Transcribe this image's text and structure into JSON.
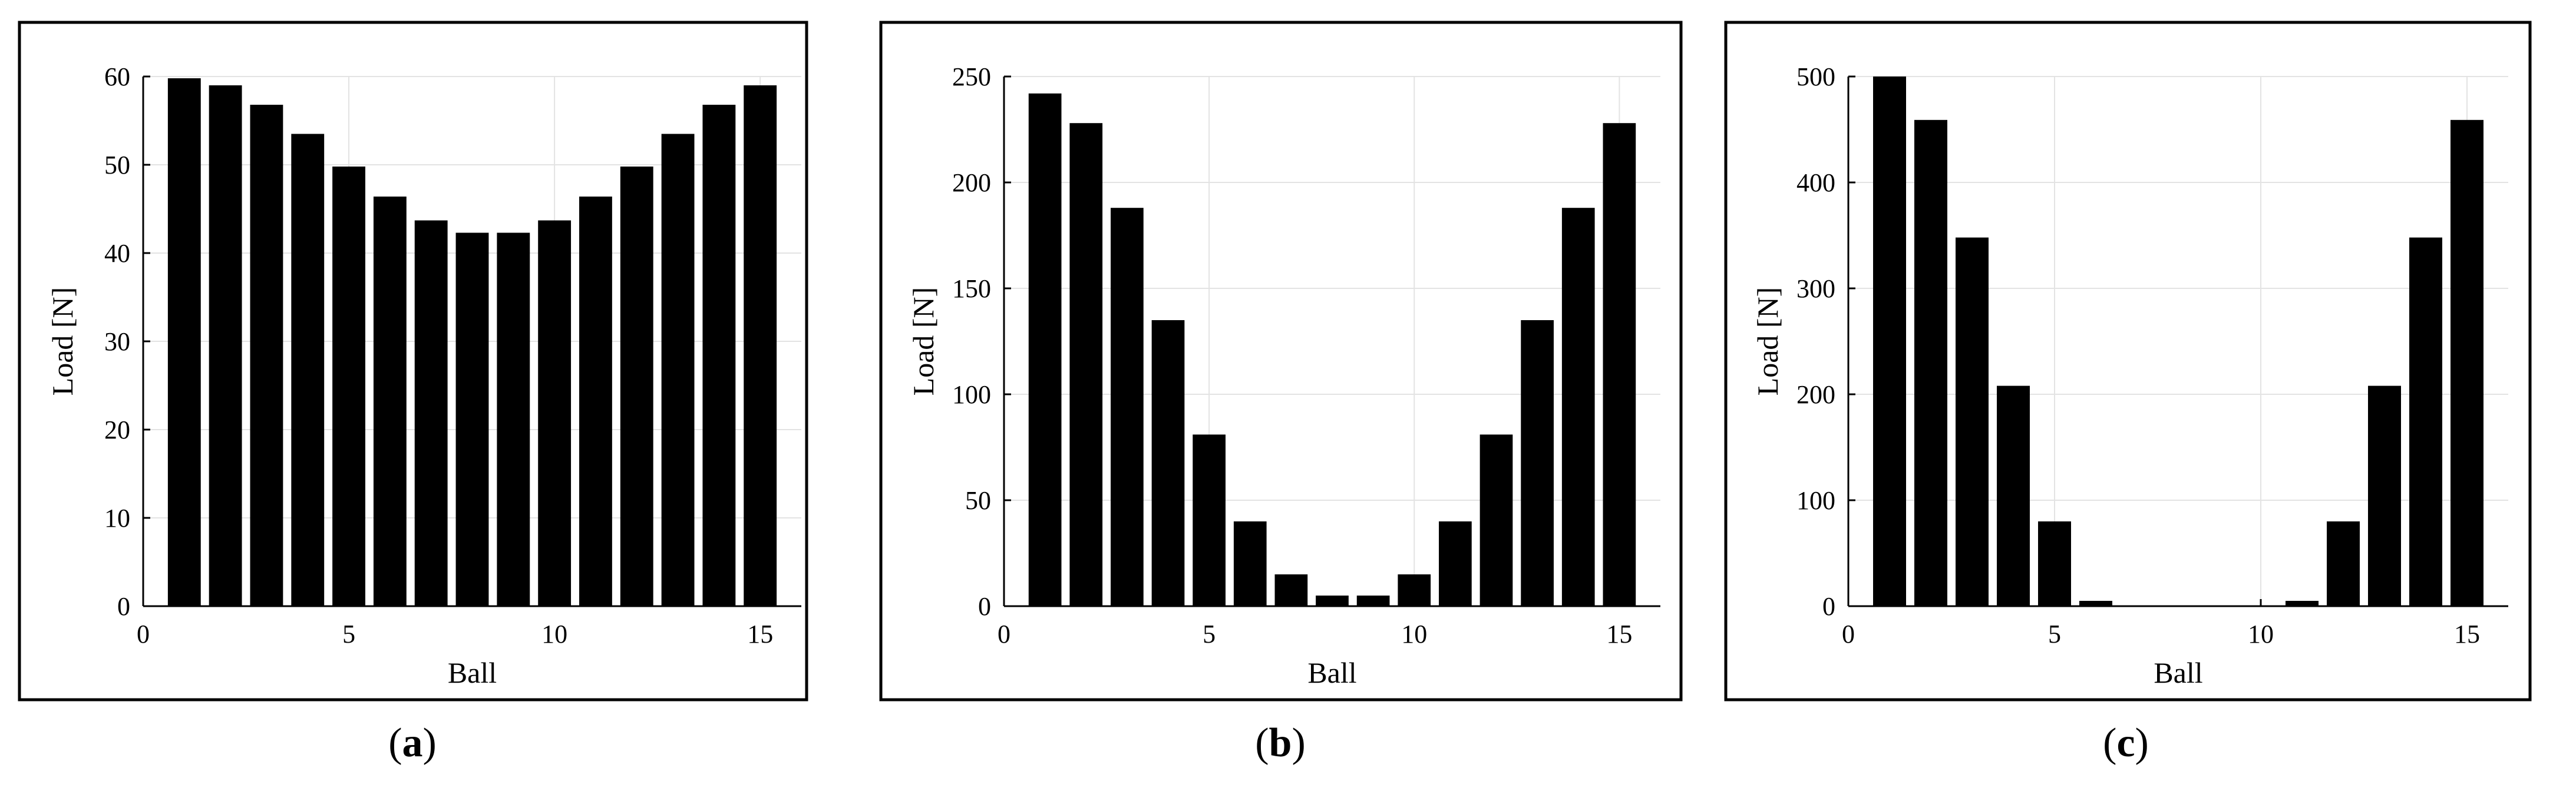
{
  "colors": {
    "bar": "#000000",
    "grid": "#e3e3e3",
    "frame": "#000000",
    "background": "#ffffff"
  },
  "chart_data": [
    {
      "type": "bar",
      "caption_prefix": "(",
      "caption_letter": "a",
      "caption_suffix": ")",
      "xlabel": "Ball",
      "ylabel": "Load [N]",
      "xlim": [
        0,
        16
      ],
      "ylim": [
        0,
        60
      ],
      "xticks": [
        0,
        5,
        10,
        15
      ],
      "yticks": [
        0,
        10,
        20,
        30,
        40,
        50,
        60
      ],
      "grid": true,
      "x": [
        1,
        2,
        3,
        4,
        5,
        6,
        7,
        8,
        9,
        10,
        11,
        12,
        13,
        14,
        15
      ],
      "values": [
        59.8,
        59.0,
        56.8,
        53.5,
        49.8,
        46.4,
        43.7,
        42.3,
        42.3,
        43.7,
        46.4,
        49.8,
        53.5,
        56.8,
        59.0
      ]
    },
    {
      "type": "bar",
      "caption_prefix": "(",
      "caption_letter": "b",
      "caption_suffix": ")",
      "xlabel": "Ball",
      "ylabel": "Load [N]",
      "xlim": [
        0,
        16
      ],
      "ylim": [
        0,
        250
      ],
      "xticks": [
        0,
        5,
        10,
        15
      ],
      "yticks": [
        0,
        50,
        100,
        150,
        200,
        250
      ],
      "grid": true,
      "x": [
        1,
        2,
        3,
        4,
        5,
        6,
        7,
        8,
        9,
        10,
        11,
        12,
        13,
        14,
        15
      ],
      "values": [
        242,
        228,
        188,
        135,
        81,
        40,
        15,
        5,
        5,
        15,
        40,
        81,
        135,
        188,
        228
      ]
    },
    {
      "type": "bar",
      "caption_prefix": "(",
      "caption_letter": "c",
      "caption_suffix": ")",
      "xlabel": "Ball",
      "ylabel": "Load [N]",
      "xlim": [
        0,
        16
      ],
      "ylim": [
        0,
        500
      ],
      "xticks": [
        0,
        5,
        10,
        15
      ],
      "yticks": [
        0,
        100,
        200,
        300,
        400,
        500
      ],
      "grid": true,
      "x": [
        1,
        2,
        3,
        4,
        5,
        6,
        7,
        8,
        9,
        10,
        11,
        12,
        13,
        14,
        15
      ],
      "values": [
        500,
        459,
        348,
        208,
        80,
        5,
        0,
        0,
        0,
        0,
        5,
        80,
        208,
        348,
        459
      ]
    }
  ]
}
